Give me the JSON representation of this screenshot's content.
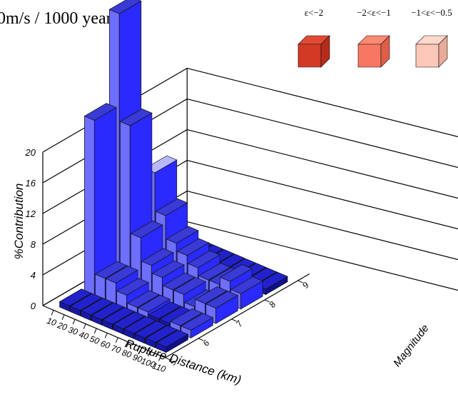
{
  "title_fragment": "0m/s / 1000 years",
  "legend": {
    "items": [
      {
        "label": "ε<−2",
        "top": "#e04a33",
        "front": "#d23a25",
        "side": "#b52c1a"
      },
      {
        "label": "−2<ε<−1",
        "top": "#ff8a73",
        "front": "#f77761",
        "side": "#de5e49"
      },
      {
        "label": "−1<ε<−0.5",
        "top": "#ffd8cc",
        "front": "#fbc7b8",
        "side": "#e8aa99"
      }
    ]
  },
  "chart_data": {
    "type": "bar3d",
    "zlabel": "%Contribution",
    "xlabel": "Rupture Distance (km)",
    "ylabel": "Magnitude",
    "zlim": [
      0,
      20
    ],
    "z_ticks": [
      "0",
      "4",
      "8",
      "12",
      "16",
      "20"
    ],
    "x_ticks": [
      "10",
      "20",
      "30",
      "40",
      "50",
      "60",
      "70",
      "80",
      "90",
      "100",
      "110"
    ],
    "y_ticks": [
      "5",
      "6",
      "7",
      "8",
      "9"
    ],
    "bars": [
      {
        "dist": 15,
        "mag": 7.0,
        "value": 17.5
      },
      {
        "dist": 15,
        "mag": 6.25,
        "value": 11.5
      },
      {
        "dist": 25,
        "mag": 7.0,
        "value": 10.5
      },
      {
        "dist": 25,
        "mag": 6.25,
        "value": 1.5
      },
      {
        "dist": 25,
        "mag": 7.75,
        "value": 6.5
      },
      {
        "dist": 35,
        "mag": 7.75,
        "value": 4.0
      },
      {
        "dist": 35,
        "mag": 7.0,
        "value": 3.5
      },
      {
        "dist": 35,
        "mag": 6.25,
        "value": 1.5
      },
      {
        "dist": 45,
        "mag": 7.75,
        "value": 2.5
      },
      {
        "dist": 45,
        "mag": 7.0,
        "value": 2.0
      },
      {
        "dist": 45,
        "mag": 6.25,
        "value": 1.0
      },
      {
        "dist": 55,
        "mag": 7.75,
        "value": 2.0
      },
      {
        "dist": 55,
        "mag": 7.0,
        "value": 1.5
      },
      {
        "dist": 55,
        "mag": 6.25,
        "value": 0.5
      },
      {
        "dist": 65,
        "mag": 7.75,
        "value": 1.5
      },
      {
        "dist": 65,
        "mag": 7.0,
        "value": 1.0
      },
      {
        "dist": 65,
        "mag": 6.25,
        "value": 0.5
      },
      {
        "dist": 75,
        "mag": 7.75,
        "value": 1.0
      },
      {
        "dist": 75,
        "mag": 7.0,
        "value": 1.0
      },
      {
        "dist": 85,
        "mag": 7.75,
        "value": 1.0
      },
      {
        "dist": 85,
        "mag": 7.0,
        "value": 0.5
      },
      {
        "dist": 95,
        "mag": 7.75,
        "value": 1.5
      },
      {
        "dist": 95,
        "mag": 7.0,
        "value": 1.0
      },
      {
        "dist": 95,
        "mag": 6.25,
        "value": 0.5
      },
      {
        "dist": 105,
        "mag": 7.75,
        "value": 1.0
      },
      {
        "dist": 105,
        "mag": 7.0,
        "value": 1.0
      },
      {
        "dist": 105,
        "mag": 6.25,
        "value": 0.5
      }
    ],
    "colors": {
      "floor_top": "#2222cc",
      "floor_front": "#1818a8",
      "floor_side": "#10108a",
      "bar_front": "#6e6eff",
      "bar_side": "#2a2aff",
      "bar_top": "#3a3ad6",
      "bar_top_light": "#b8b8ff",
      "edge": "#111111"
    }
  }
}
